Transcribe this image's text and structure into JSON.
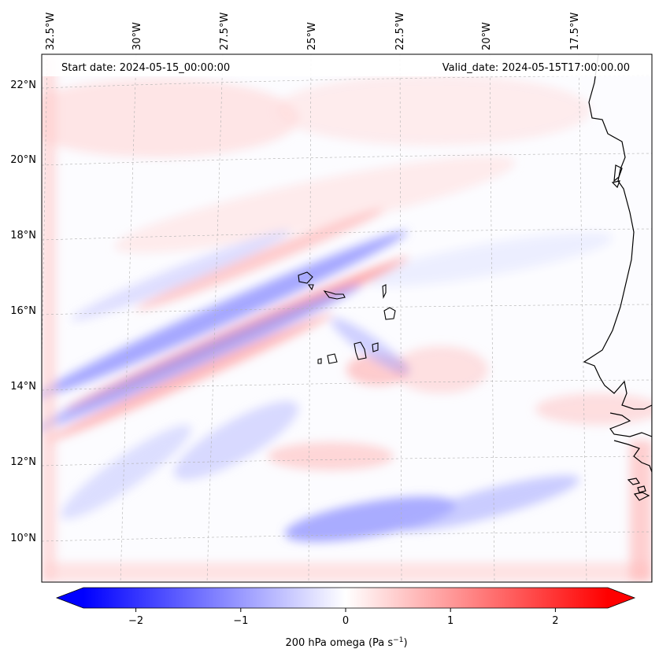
{
  "header": {
    "start_date": "Start date: 2024-05-15_00:00:00",
    "valid_date": "Valid_date: 2024-05-15T17:00:00.00"
  },
  "longitude_labels": [
    "32.5°W",
    "30°W",
    "27.5°W",
    "25°W",
    "22.5°W",
    "20°W",
    "17.5°W"
  ],
  "latitude_labels": [
    "22°N",
    "20°N",
    "18°N",
    "16°N",
    "14°N",
    "12°N",
    "10°N"
  ],
  "colorbar": {
    "tick_labels": [
      "−2",
      "−1",
      "0",
      "1",
      "2"
    ],
    "tick_values": [
      -2,
      -1,
      0,
      1,
      2
    ],
    "range": [
      -2.5,
      2.5
    ],
    "label_prefix": "200 hPa omega (Pa s",
    "label_exp": "−1",
    "label_suffix": ")"
  },
  "colors": {
    "negative": "#0000ff",
    "positive": "#ff0000",
    "zero": "#ffffff",
    "coast": "#000000",
    "grid": "#b0b0b0"
  }
}
